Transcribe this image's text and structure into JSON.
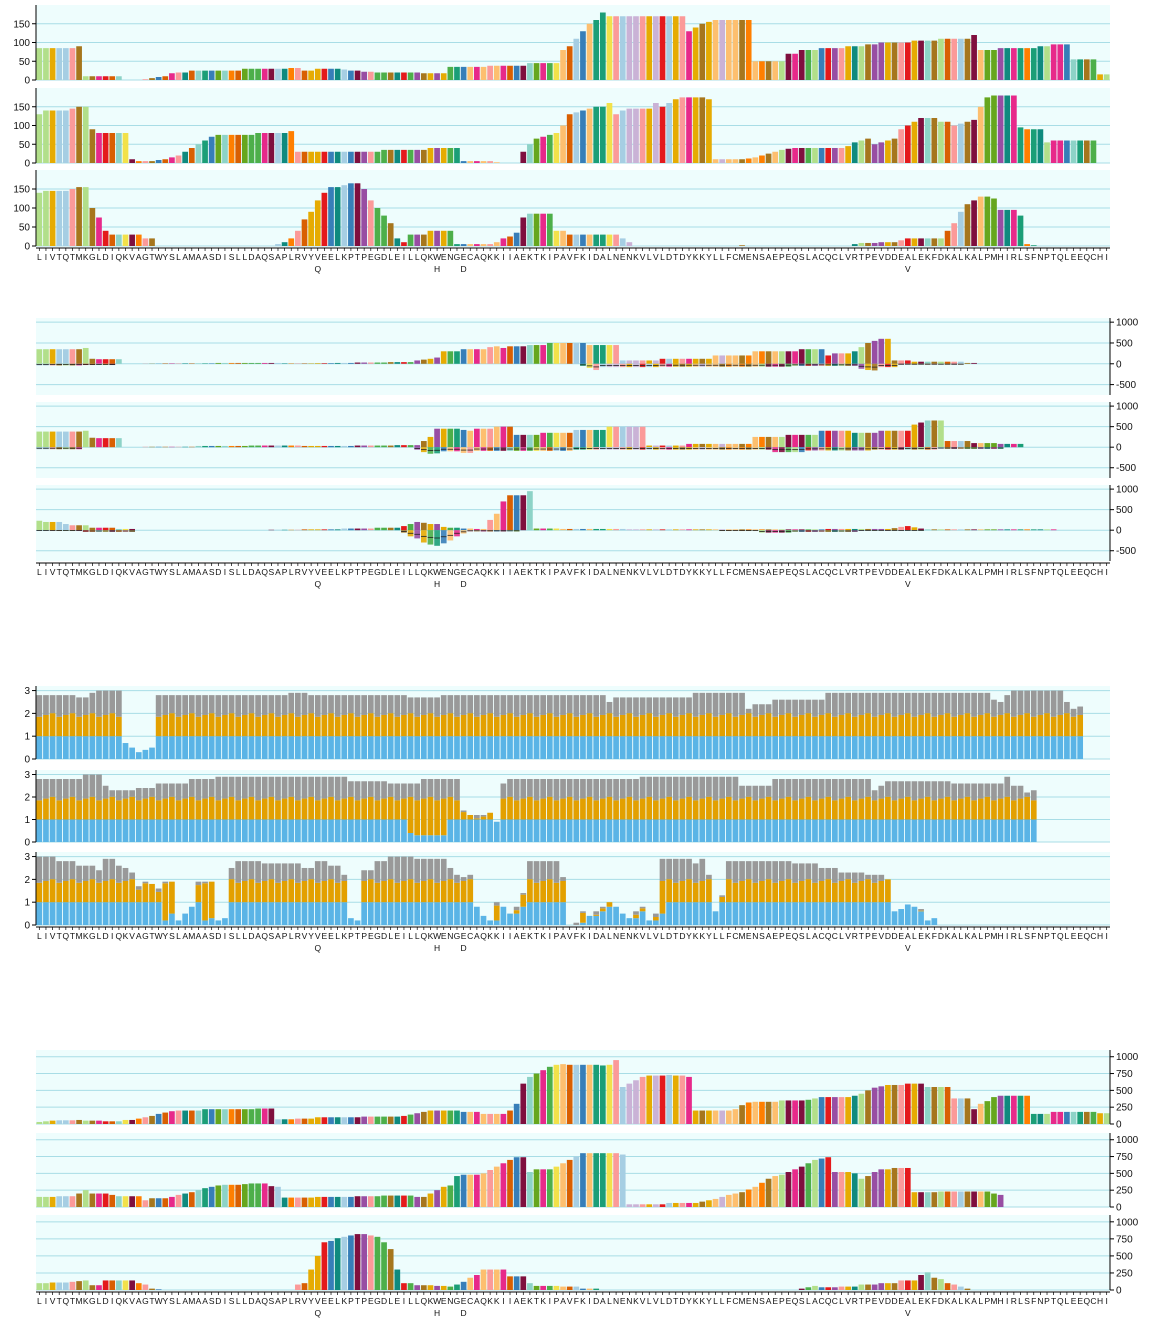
{
  "sequence": "LIVTQTMKGLDIQKVAGTWYSLAMAASDISLLDAQSAPLRVYVEELKPTPEGDLEILLQKWENGECAQKKIIAEKTKIPAVFKIDALNENKVLVLDTDYKKYLLFCMENSAEPEQSLACQCLVRTPEVDDEALEKFDKALKALPMHIRLSFNPTQLEEQCHI",
  "mutations": [
    {
      "position": 42,
      "residue": "Q"
    },
    {
      "position": 60,
      "residue": "H"
    },
    {
      "position": 64,
      "residue": "D"
    },
    {
      "position": 131,
      "residue": "V"
    }
  ],
  "colors": {
    "panel_bg": "#eefdfd",
    "grid": "#a8dde6",
    "tile_blue": "#5ab4e6",
    "tile_orange": "#e3a000",
    "tile_gray": "#999999",
    "residue_palette": [
      "#1b9e77",
      "#e7298a",
      "#d95f02",
      "#66a61e",
      "#e6ab02",
      "#a6761d",
      "#e41a1c",
      "#377eb8",
      "#4daf4a",
      "#984ea3",
      "#ff7f00",
      "#a6cee3",
      "#b2df8a",
      "#fb9a99",
      "#fdbf6f",
      "#cab2d6",
      "#7f0f3e",
      "#0f8a7e",
      "#f2e14a",
      "#8dd3c7"
    ]
  },
  "chart_data": [
    {
      "type": "bar",
      "group": "profile-A",
      "yticks": [
        0,
        50,
        100,
        150
      ],
      "ylim": [
        0,
        200
      ],
      "axis_side": "left",
      "series": [
        {
          "values_compact": "85x6,90,10x6,0x3,2,5,8,10,18,20x2,25x8,30x7,32x2,25x2,30x4,28,25x2,22x2,20x7,18x4,35x6,38x6,45x5,80,90,110,130,150,160,180,170x12,130,140,150,155,160x6,50x5,70x2,80x3,85x4,90x3,95x2,100x5,105x4,110x5,120,80x3,85x6,90x2,95x3,55x4,15x3,90,115x5,110x2,38x7,40x5,42x4"
        },
        {
          "values_compact": "130,140x4,145,150x2,90,80x5,10,5x3,8,10,15,20,30,40,50,60,70,75x6,80x5,85,30x13,35x7,40x5,5x5,2,0x3,30,50,65,70,75,80,100,130,135,140,145,150x2,160,130,140,145x4,160,150,160,170,175x4,170,10x5,12,15,20,25,30,35,38,40x8,45,55,60,65,50,55,60,65,90,100,110,120x3,110x2,100,105,110,115,150,175,180x4,95,90x3,55,60x7"
        },
        {
          "values_compact": "140,145x4,150,155x2,100,75,40,30x5,20x2,0x18,5,10,20,40,70,90,120,140,155x2,160,165x2,150,120,100,80,60,20,10,30x3,40x4,5x6,10,20,25,35,75,85x4,40x2,30x8,20,10,0x16,2,0x16,5,8x3,10x3,15,20x6,40,60,90,110,120,130x2,125,95x3,80,5,2,0x7"
        }
      ]
    },
    {
      "type": "bar",
      "group": "profile-B",
      "yticks": [
        -500,
        0,
        500,
        1000
      ],
      "ylim": [
        -750,
        1100
      ],
      "axis_side": "right",
      "series": [
        {
          "values_compact": "350x7,380,120,110x4,0x3,5x3,10x8,20x10,10x5,15x3,20x3,30x5,40x4,80,100,120,150,300x3,350x4,400,420,380,420x3,450x3,500x6,450x5,80x6,120x8,200x6,300x7,350x4,200,250x3,300,400,500,550,600x2,80x3,50x8,20x2",
          "negatives_compact": "-40x7,-30x5,0x70,-50,-100,-150,-80x9,-70x20,-50x10,-120,-150,-160,-80x3,-20x10"
        },
        {
          "values_compact": "380x7,400,230,220x4,0x3,10x8,30x8,40x8,30x8,40x6,50x4,150,250,450x4,420,400,450x3,500x3,300x4,350x5,420x5,500x6,40x6,80x10,250x5,300x5,400x5,350x4,400x5,550,600,650x3,150x4,100x4,80x4",
          "negatives_compact": "-50x7,0x50,-60,-120,-160,-150,-100x3,-140x2,-90x15,-60x30,-120x5,-80x10,-60x10,-40x10"
        },
        {
          "values_compact": "230,200x3,150,120x3,60x4,30x3,0x20,10x5,20x6,40x5,60x4,100,150,200,180,150x2,80,60x2,40x2,30x2,250,400,700,850x3,950,40x4,30x10,20x30,30x10,50,80,100,70,40,20x20",
          "negatives_compact": "-20x7,-40x8,0x40,-60,-150,-200,-300,-350,-380,-320,-250,-150,-80,-30x8,0x30,-20x6,-60x5,-40x10,-10x10"
        }
      ]
    },
    {
      "type": "bar",
      "group": "profile-C",
      "yticks": [
        0,
        1,
        2,
        3
      ],
      "ylim": [
        0,
        3.2
      ],
      "axis_side": "left",
      "layers": [
        "blue",
        "orange",
        "gray"
      ],
      "series": [
        {
          "totals_compact": "2.8x6,2.7x2,2.9,3x4,0.7,0.5,0.3,0.4,0.5,2.8x20,2.9x3,2.8x15,2.7x5,2.8x25,2.5,2.7x12,2.9x8,2.2,2.4x3,2.6x8,2.9x25,2.6,2.5,2.8,3x8,2.5,2.2,2.3",
          "blue_compact": "1x13,0.7,0.5,0.3,0.4,0.5,1x126,1x14"
        },
        {
          "totals_compact": "2.8x7,3x3,2.5,2.3x4,2.4x3,2.6x5,2.8x4,2.9x20,2.7x6,2.6x5,2.8x6,1.4,1.2x3,1.3,0.9,2.6,2.8x20,2.9x15,2.5x5,2.8x15,2.3,2.5,2.7x10,2.6x8,2.9,2.5x2,2.2,2.3",
          "blue_compact": "1x56,0.4,0.3x5,1x95"
        },
        {
          "totals_compact": "3x3,2.8x3,2.6x3,2.4,2.9x2,2.6,2.5,2.3,1.7,1.9,1.8,1.6,1.9x2,0.2,0.5,0.8,1.9,1.9x2,0.2,0.3,2.5,2.8x4,2.7x6,2.5x2,2.8x2,2.6x2,2.2,0.3,0.2,2.4x2,2.8x2,3x4,2.9x5,2.5,2.2,2.1,2.2,0.8,0.4,0.2,1,0.8,0.5,0.8,1.4,2.8x5,2.1,0,0.1,0.6,0.4,0.6,0.8,1,0.8,0.5,0.3,0.6,0.8,0.2,0.5,2.9x5,2.7,2.9,2.2,0.6,1.3,2.8x10,2.7x4,2.5x3,2.3x4,2.2x3,2,0.6,0.7,0.9,0.8,0.7,0.2,0.3",
          "blue_compact": "1x12,1x3,1x4,0.2,0.5,0.8,1x3,0.2,0.3,1x40,0.8,0.4,0.2,1,0.8,0.5,0.8,1x7,0,0.1,0.6,0.4,0.6,0.8,1,0.8,0.5,0.3,0.6,0.8,0.2,0.5,1x7,0.6,1x30,0.6,0.7,0.9,0.8,0.7,0.2,0.3"
        }
      ]
    },
    {
      "type": "bar",
      "group": "profile-D",
      "yticks": [
        0,
        250,
        500,
        750,
        1000
      ],
      "ylim": [
        0,
        1100
      ],
      "axis_side": "right",
      "series": [
        {
          "values_compact": "30,40,50,55x3,60,50x3,40x3,60x2,80,100,120,150,170,190,200x4,220x8,230x3,70x3,80x3,100x7,110x6,120,140,160,180,200x5,180x3,150x4,200,300,600,700,750,800,850,880,890,880x5,870,880,950,550,600,650,700,720x3,730,720x2,700,200x6,220,280,320,330x4,350x4,360,380,400x5,420,450,500,540,560,580x3,600x3,550x4,380x3,220,300,340,400,420x5,150x3,180x7,160x3"
        },
        {
          "values_compact": "150x3,160x3,200,250,200x3,180,160x4,100,130x3,150,180,200,220,250,280,300,320,330x3,340,350x3,310,300,140x5,150x6,160x4,170x5,150x2,200,250,300,320,460,480x3,500,550,600,650,700,740x2,520,560x3,600,650,700,750,800x6,780,40x6,60x5,80,100,120,150,180,200,220,260,300,360,420,460,480,520,560,600,650,700,720,740,520x3,500,420,460,520,560x2,580x3,220x4,230x8,200,180"
        },
        {
          "values_compact": "100x2,110x3,120,130,140,70x2,140x5,100,80,20,10,0x20,80,100,300,500,700,720,760,780,800,820,820,800,780,700,600,300,100x2,70x3,60x2,50,80,120,180,220,300x4,200x3,100,60x4,50x3,20x3,0x30,20,40,60,40x3,50x3,80x3,100x3,140x3,220,260,180,160,100,80,50,20,0x8"
        }
      ]
    }
  ]
}
